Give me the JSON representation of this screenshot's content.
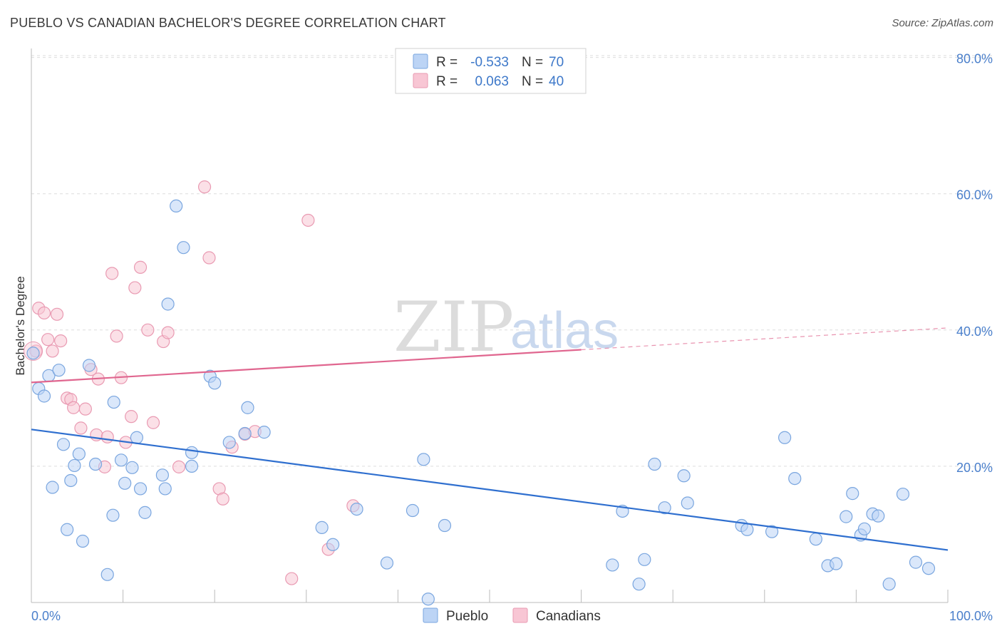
{
  "title": "PUEBLO VS CANADIAN BACHELOR'S DEGREE CORRELATION CHART",
  "source": "Source: ZipAtlas.com",
  "watermark": {
    "part1": "ZIP",
    "part2": "atlas"
  },
  "legend_top": {
    "rows": [
      {
        "r_label": "R =",
        "r_value": "-0.533",
        "n_label": "N =",
        "n_value": "70"
      },
      {
        "r_label": "R =",
        "r_value": "0.063",
        "n_label": "N =",
        "n_value": "40"
      }
    ]
  },
  "legend_bottom": {
    "pueblo": "Pueblo",
    "canadians": "Canadians"
  },
  "colors": {
    "pueblo_fill": "#bcd4f5",
    "pueblo_stroke": "#7aa6df",
    "pueblo_line": "#2f6fcf",
    "canadian_fill": "#f8c6d4",
    "canadian_stroke": "#e99ab2",
    "canadian_line": "#e0668f",
    "accent_text": "#3d78c9",
    "grid": "#dddddd"
  },
  "chart_data": {
    "type": "scatter",
    "title": "PUEBLO VS CANADIAN BACHELOR'S DEGREE CORRELATION CHART",
    "xlabel": "",
    "ylabel": "Bachelor's Degree",
    "xlim": [
      0,
      100
    ],
    "ylim": [
      0,
      82
    ],
    "x_tick_labels": [
      "0.0%",
      "100.0%"
    ],
    "y_ticks": [
      20,
      40,
      60,
      80
    ],
    "y_tick_labels": [
      "20.0%",
      "40.0%",
      "60.0%",
      "80.0%"
    ],
    "series": [
      {
        "name": "Pueblo",
        "r": -0.533,
        "n": 70,
        "trend": {
          "x0": 0,
          "y0": 25.4,
          "x1": 100,
          "y1": 7.7
        },
        "points": [
          [
            0.2,
            36.6
          ],
          [
            0.8,
            31.4
          ],
          [
            1.4,
            30.3
          ],
          [
            1.9,
            33.3
          ],
          [
            2.3,
            16.9
          ],
          [
            3.0,
            34.1
          ],
          [
            3.5,
            23.2
          ],
          [
            3.9,
            10.7
          ],
          [
            4.3,
            17.9
          ],
          [
            4.7,
            20.1
          ],
          [
            5.2,
            21.8
          ],
          [
            5.6,
            9.0
          ],
          [
            6.3,
            34.8
          ],
          [
            7.0,
            20.3
          ],
          [
            8.3,
            4.1
          ],
          [
            8.9,
            12.8
          ],
          [
            9.0,
            29.4
          ],
          [
            9.8,
            20.9
          ],
          [
            10.2,
            17.5
          ],
          [
            11.0,
            19.8
          ],
          [
            11.5,
            24.2
          ],
          [
            11.9,
            16.7
          ],
          [
            12.4,
            13.2
          ],
          [
            14.3,
            18.7
          ],
          [
            14.6,
            16.7
          ],
          [
            14.9,
            43.8
          ],
          [
            15.8,
            58.2
          ],
          [
            16.6,
            52.1
          ],
          [
            17.5,
            22.0
          ],
          [
            17.5,
            20.0
          ],
          [
            19.5,
            33.2
          ],
          [
            20.0,
            32.2
          ],
          [
            21.6,
            23.5
          ],
          [
            23.3,
            24.8
          ],
          [
            23.6,
            28.6
          ],
          [
            25.4,
            25.0
          ],
          [
            31.7,
            11.0
          ],
          [
            32.9,
            8.5
          ],
          [
            35.5,
            13.7
          ],
          [
            38.8,
            5.8
          ],
          [
            41.6,
            13.5
          ],
          [
            42.8,
            21.0
          ],
          [
            43.3,
            0.5
          ],
          [
            45.1,
            11.3
          ],
          [
            63.4,
            5.5
          ],
          [
            64.5,
            13.4
          ],
          [
            66.3,
            2.7
          ],
          [
            66.9,
            6.3
          ],
          [
            68.0,
            20.3
          ],
          [
            69.1,
            13.9
          ],
          [
            71.2,
            18.6
          ],
          [
            71.6,
            14.6
          ],
          [
            77.5,
            11.3
          ],
          [
            78.1,
            10.7
          ],
          [
            80.8,
            10.4
          ],
          [
            82.2,
            24.2
          ],
          [
            83.3,
            18.2
          ],
          [
            85.6,
            9.3
          ],
          [
            86.9,
            5.4
          ],
          [
            87.8,
            5.7
          ],
          [
            88.9,
            12.6
          ],
          [
            89.6,
            16.0
          ],
          [
            90.5,
            9.9
          ],
          [
            90.9,
            10.8
          ],
          [
            91.8,
            13.0
          ],
          [
            92.4,
            12.7
          ],
          [
            93.6,
            2.7
          ],
          [
            95.1,
            15.9
          ],
          [
            96.5,
            5.9
          ],
          [
            97.9,
            5.0
          ]
        ]
      },
      {
        "name": "Canadians",
        "r": 0.063,
        "n": 40,
        "trend": {
          "x0": 0,
          "y0": 32.3,
          "x1": 60,
          "y1": 37.1,
          "dashed_x1": 100,
          "dashed_y1": 40.3
        },
        "points": [
          [
            0.5,
            36.9
          ],
          [
            0.8,
            43.2
          ],
          [
            1.4,
            42.5
          ],
          [
            1.8,
            38.6
          ],
          [
            2.3,
            36.9
          ],
          [
            2.8,
            42.3
          ],
          [
            3.2,
            38.4
          ],
          [
            3.9,
            30.0
          ],
          [
            4.3,
            29.8
          ],
          [
            4.6,
            28.6
          ],
          [
            5.4,
            25.6
          ],
          [
            5.9,
            28.4
          ],
          [
            6.5,
            34.2
          ],
          [
            7.1,
            24.6
          ],
          [
            7.3,
            32.8
          ],
          [
            8.0,
            19.9
          ],
          [
            8.3,
            24.3
          ],
          [
            8.8,
            48.3
          ],
          [
            9.3,
            39.1
          ],
          [
            9.8,
            33.0
          ],
          [
            10.3,
            23.5
          ],
          [
            10.9,
            27.3
          ],
          [
            11.3,
            46.2
          ],
          [
            11.9,
            49.2
          ],
          [
            12.7,
            40.0
          ],
          [
            13.3,
            26.4
          ],
          [
            14.4,
            38.3
          ],
          [
            14.9,
            39.6
          ],
          [
            16.1,
            19.9
          ],
          [
            18.9,
            61.0
          ],
          [
            19.4,
            50.6
          ],
          [
            20.5,
            16.7
          ],
          [
            20.9,
            15.2
          ],
          [
            21.9,
            22.8
          ],
          [
            23.3,
            24.7
          ],
          [
            24.4,
            25.1
          ],
          [
            28.4,
            3.5
          ],
          [
            30.2,
            56.1
          ],
          [
            32.4,
            7.8
          ],
          [
            35.1,
            14.2
          ]
        ]
      }
    ]
  }
}
